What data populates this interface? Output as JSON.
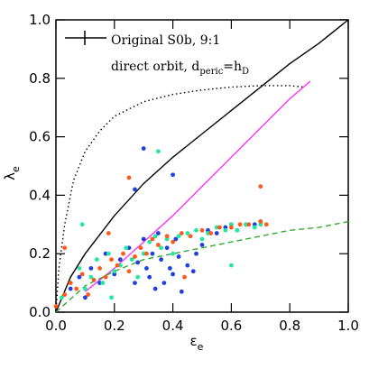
{
  "chart_data": {
    "type": "scatter",
    "xlabel": "ε",
    "xlabel_sub": "e",
    "ylabel": "λ",
    "ylabel_sub": "e",
    "xlim": [
      0,
      1
    ],
    "ylim": [
      0,
      1
    ],
    "xticks": [
      {
        "value": 0,
        "label": "0.0"
      },
      0.2,
      0.4,
      0.6,
      0.8,
      {
        "value": 1,
        "label": "1.0"
      }
    ],
    "yticks": [
      {
        "value": 0,
        "label": "0.0"
      },
      0.2,
      0.4,
      0.6,
      0.8,
      {
        "value": 1,
        "label": "1.0"
      }
    ],
    "legend": {
      "line1": "Original S0b, 9:1",
      "line2": "direct orbit, d",
      "line2_sub1": "peric",
      "line2_mid": "=h",
      "line2_sub2": "D"
    },
    "curves": [
      {
        "color": "#000000",
        "style": "solid",
        "x": [
          0,
          0.05,
          0.1,
          0.2,
          0.3,
          0.4,
          0.5,
          0.6,
          0.7,
          0.8,
          0.9,
          1.0
        ],
        "values": [
          0,
          0.12,
          0.2,
          0.33,
          0.44,
          0.53,
          0.61,
          0.69,
          0.77,
          0.85,
          0.92,
          1.0
        ]
      },
      {
        "color": "#000000",
        "style": "dotted",
        "x": [
          0,
          0.01,
          0.03,
          0.06,
          0.1,
          0.15,
          0.2,
          0.3,
          0.4,
          0.5,
          0.6,
          0.7,
          0.8,
          0.85
        ],
        "values": [
          0,
          0.15,
          0.3,
          0.45,
          0.55,
          0.62,
          0.67,
          0.72,
          0.745,
          0.76,
          0.77,
          0.775,
          0.775,
          0.77
        ]
      },
      {
        "color": "#ff33ff",
        "style": "solid",
        "x": [
          0.1,
          0.2,
          0.3,
          0.4,
          0.5,
          0.6,
          0.7,
          0.8,
          0.87
        ],
        "values": [
          0.07,
          0.15,
          0.24,
          0.33,
          0.43,
          0.53,
          0.63,
          0.73,
          0.79
        ]
      },
      {
        "color": "#33aa33",
        "style": "dashed",
        "x": [
          0,
          0.1,
          0.2,
          0.3,
          0.4,
          0.5,
          0.6,
          0.7,
          0.8,
          0.9,
          1.0
        ],
        "values": [
          0,
          0.09,
          0.14,
          0.18,
          0.2,
          0.22,
          0.24,
          0.26,
          0.28,
          0.29,
          0.31
        ]
      }
    ],
    "series": [
      {
        "color": "#1f3fe0",
        "x": [
          0.05,
          0.08,
          0.1,
          0.12,
          0.15,
          0.17,
          0.2,
          0.22,
          0.25,
          0.27,
          0.28,
          0.3,
          0.31,
          0.32,
          0.33,
          0.34,
          0.35,
          0.36,
          0.37,
          0.38,
          0.39,
          0.4,
          0.41,
          0.42,
          0.43,
          0.45,
          0.47,
          0.5,
          0.52,
          0.55,
          0.58,
          0.6,
          0.62,
          0.65,
          0.68,
          0.7,
          0.3,
          0.27,
          0.4,
          0.48
        ],
        "values": [
          0.08,
          0.12,
          0.05,
          0.15,
          0.1,
          0.2,
          0.13,
          0.18,
          0.22,
          0.1,
          0.17,
          0.25,
          0.15,
          0.12,
          0.2,
          0.08,
          0.27,
          0.18,
          0.1,
          0.22,
          0.15,
          0.13,
          0.25,
          0.19,
          0.07,
          0.16,
          0.14,
          0.23,
          0.28,
          0.27,
          0.29,
          0.3,
          0.28,
          0.3,
          0.3,
          0.31,
          0.56,
          0.42,
          0.47,
          0.2
        ]
      },
      {
        "color": "#22e8a0",
        "x": [
          0.02,
          0.05,
          0.08,
          0.1,
          0.12,
          0.14,
          0.16,
          0.18,
          0.2,
          0.22,
          0.24,
          0.26,
          0.28,
          0.3,
          0.32,
          0.34,
          0.36,
          0.38,
          0.4,
          0.42,
          0.45,
          0.48,
          0.5,
          0.52,
          0.55,
          0.58,
          0.6,
          0.62,
          0.65,
          0.68,
          0.7,
          0.09,
          0.19,
          0.35,
          0.6
        ],
        "values": [
          0.05,
          0.1,
          0.15,
          0.08,
          0.12,
          0.18,
          0.1,
          0.2,
          0.14,
          0.16,
          0.22,
          0.18,
          0.12,
          0.2,
          0.24,
          0.26,
          0.22,
          0.25,
          0.2,
          0.26,
          0.27,
          0.28,
          0.25,
          0.27,
          0.29,
          0.28,
          0.3,
          0.28,
          0.3,
          0.29,
          0.3,
          0.3,
          0.05,
          0.55,
          0.16
        ]
      },
      {
        "color": "#ff5a1a",
        "x": [
          0.0,
          0.03,
          0.05,
          0.07,
          0.09,
          0.11,
          0.13,
          0.15,
          0.17,
          0.19,
          0.21,
          0.23,
          0.25,
          0.27,
          0.29,
          0.31,
          0.33,
          0.35,
          0.38,
          0.4,
          0.43,
          0.46,
          0.5,
          0.53,
          0.56,
          0.6,
          0.63,
          0.66,
          0.7,
          0.72,
          0.25,
          0.18,
          0.7,
          0.03,
          0.44
        ],
        "values": [
          0.02,
          0.06,
          0.1,
          0.08,
          0.13,
          0.06,
          0.11,
          0.15,
          0.12,
          0.18,
          0.16,
          0.2,
          0.14,
          0.19,
          0.22,
          0.2,
          0.25,
          0.23,
          0.26,
          0.24,
          0.27,
          0.26,
          0.28,
          0.27,
          0.29,
          0.29,
          0.3,
          0.3,
          0.31,
          0.3,
          0.46,
          0.27,
          0.43,
          0.22,
          0.12
        ]
      }
    ]
  }
}
